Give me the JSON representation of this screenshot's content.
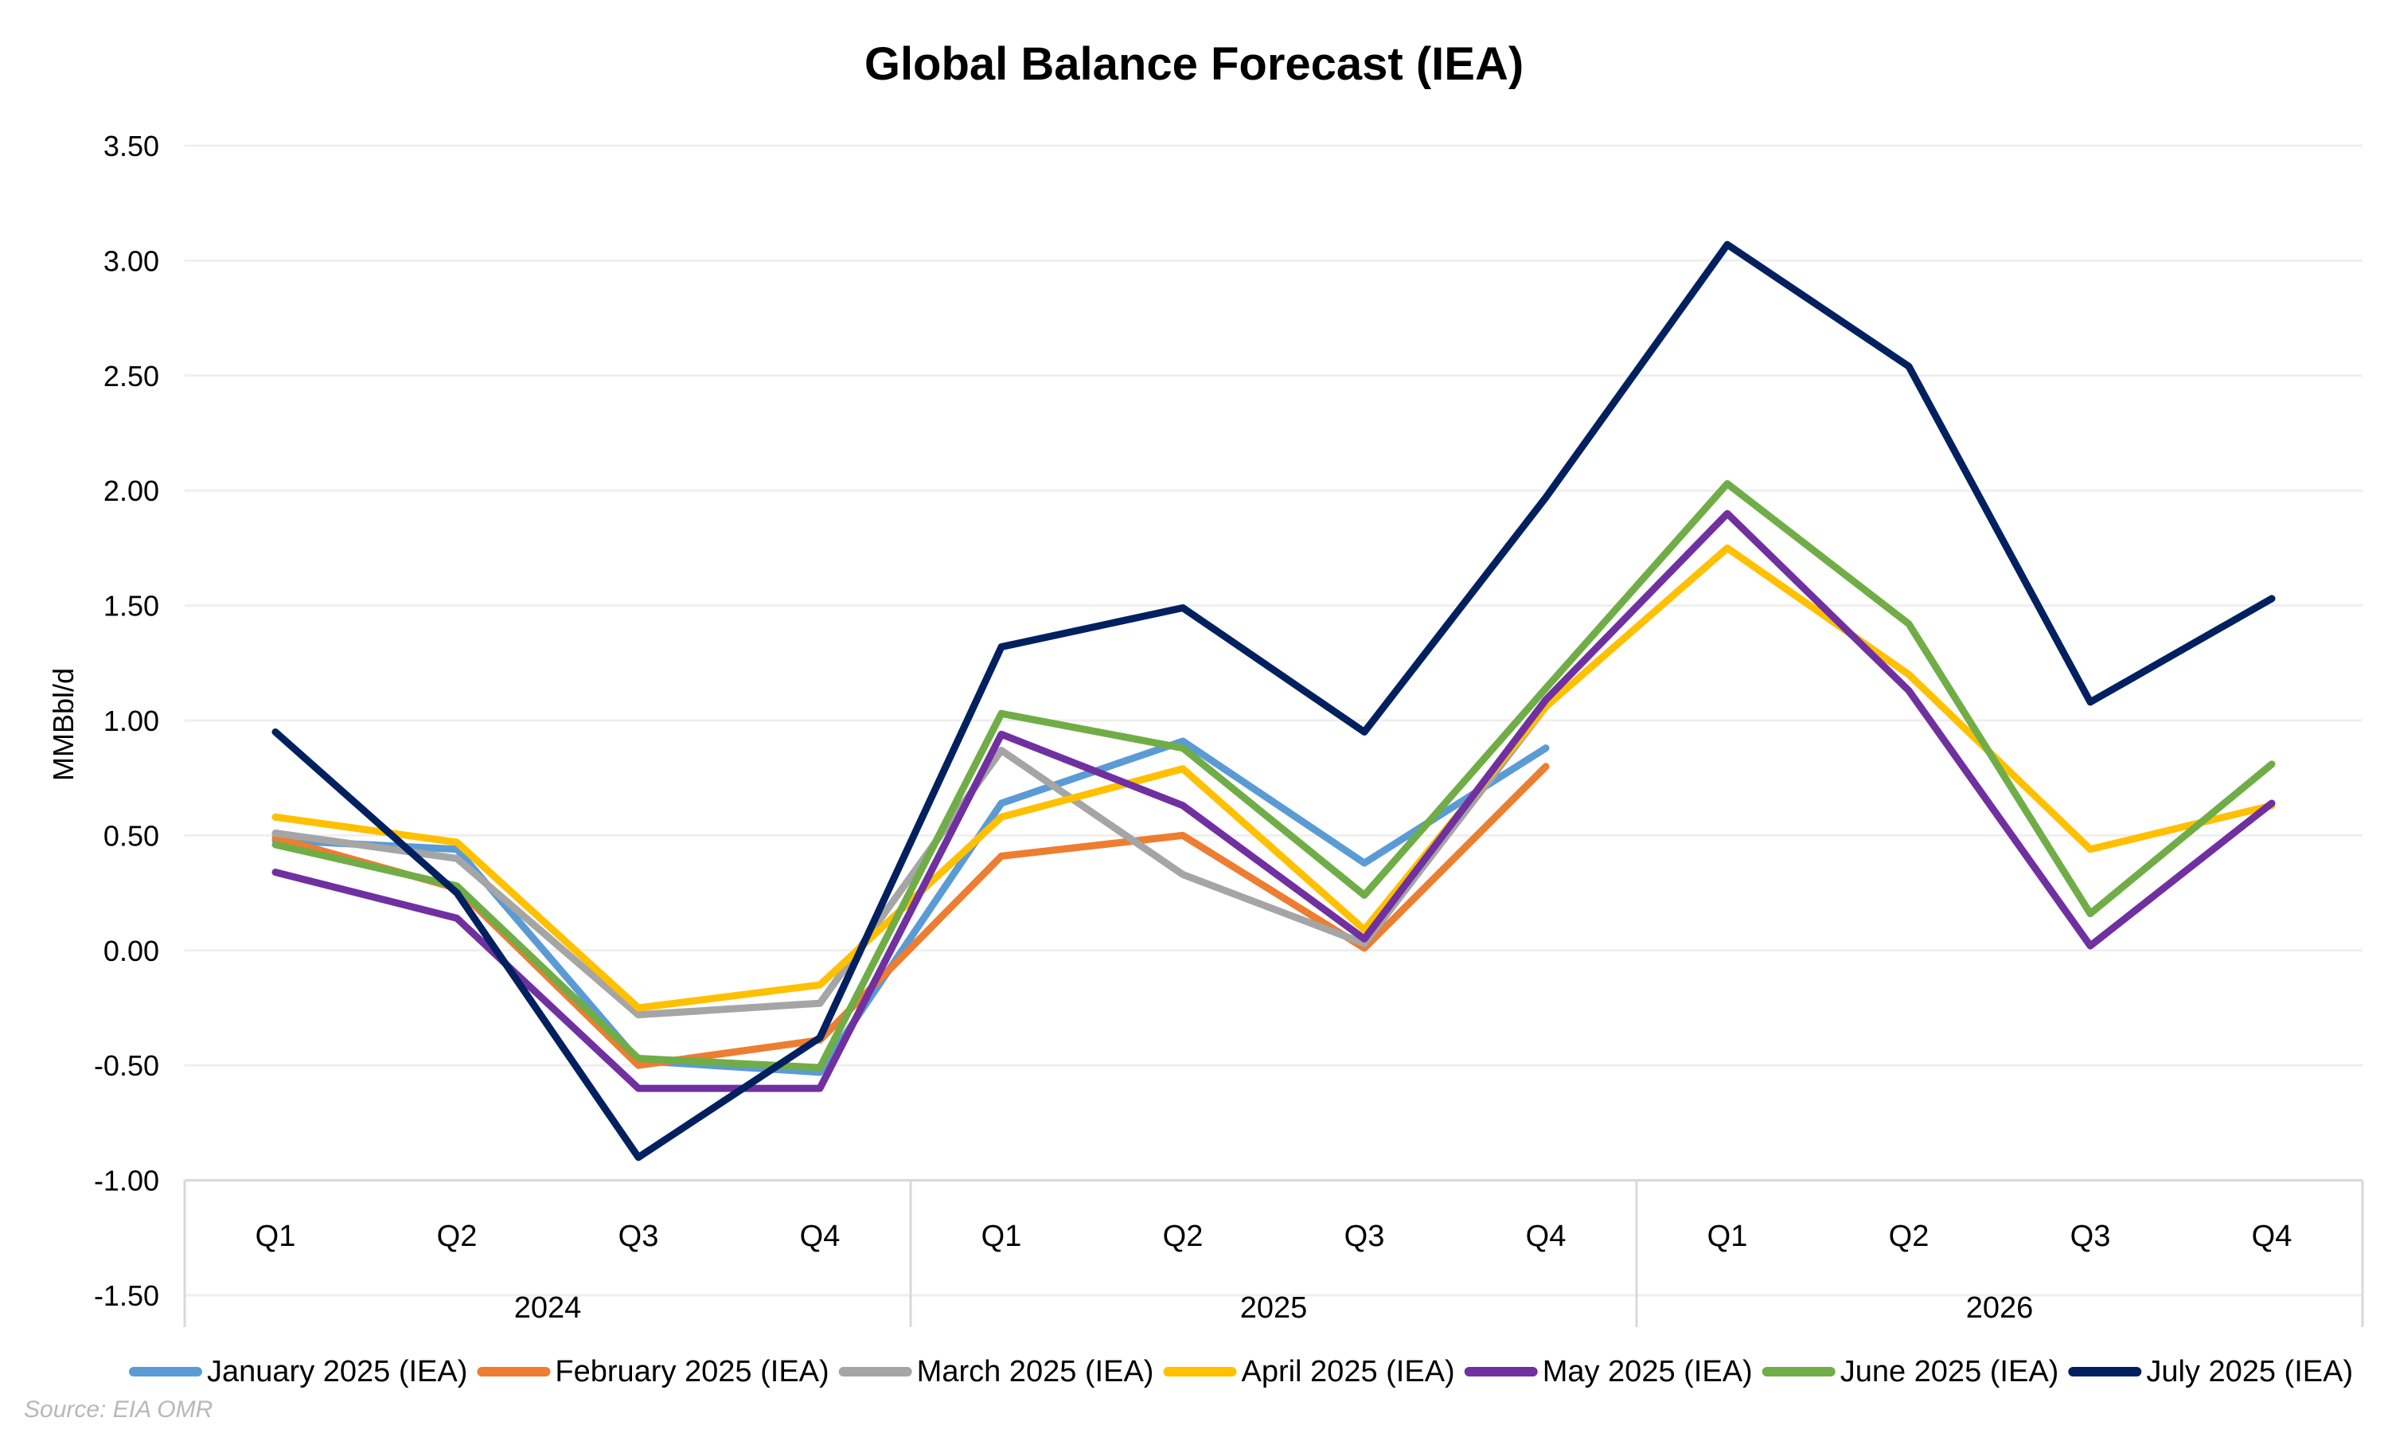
{
  "chart_data": {
    "type": "line",
    "title": "Global Balance Forecast (IEA)",
    "xlabel": "",
    "ylabel": "MMBbl/d",
    "ylim": [
      -1.5,
      3.5
    ],
    "y_ticks": [
      "3.50",
      "3.00",
      "2.50",
      "2.00",
      "1.50",
      "1.00",
      "0.50",
      "0.00",
      "-0.50",
      "-1.00",
      "-1.50"
    ],
    "y_tick_values": [
      3.5,
      3.0,
      2.5,
      2.0,
      1.5,
      1.0,
      0.5,
      0.0,
      -0.5,
      -1.0,
      -1.5
    ],
    "grid": true,
    "legend_position": "bottom",
    "categories": [
      "Q1",
      "Q2",
      "Q3",
      "Q4",
      "Q1",
      "Q2",
      "Q3",
      "Q4",
      "Q1",
      "Q2",
      "Q3",
      "Q4"
    ],
    "groups": [
      {
        "label": "2024",
        "span": 4
      },
      {
        "label": "2025",
        "span": 4
      },
      {
        "label": "2026",
        "span": 4
      }
    ],
    "series": [
      {
        "name": "January 2025 (IEA)",
        "color": "#5B9BD5",
        "values": [
          0.48,
          0.44,
          -0.48,
          -0.53,
          0.64,
          0.91,
          0.38,
          0.88,
          null,
          null,
          null,
          null
        ]
      },
      {
        "name": "February 2025 (IEA)",
        "color": "#ED7D31",
        "values": [
          0.49,
          0.27,
          -0.5,
          -0.39,
          0.41,
          0.5,
          0.01,
          0.8,
          null,
          null,
          null,
          null
        ]
      },
      {
        "name": "March 2025 (IEA)",
        "color": "#A5A5A5",
        "values": [
          0.51,
          0.4,
          -0.28,
          -0.23,
          0.87,
          0.33,
          0.03,
          1.06,
          null,
          null,
          null,
          null
        ]
      },
      {
        "name": "April 2025 (IEA)",
        "color": "#FFC000",
        "values": [
          0.58,
          0.47,
          -0.25,
          -0.15,
          0.58,
          0.79,
          0.09,
          1.06,
          1.75,
          1.2,
          0.44,
          0.63
        ]
      },
      {
        "name": "May 2025 (IEA)",
        "color": "#7030A0",
        "values": [
          0.34,
          0.14,
          -0.6,
          -0.6,
          0.94,
          0.63,
          0.05,
          1.09,
          1.9,
          1.13,
          0.02,
          0.64
        ]
      },
      {
        "name": "June 2025 (IEA)",
        "color": "#70AD47",
        "values": [
          0.46,
          0.28,
          -0.47,
          -0.51,
          1.03,
          0.88,
          0.24,
          1.14,
          2.03,
          1.42,
          0.16,
          0.81
        ]
      },
      {
        "name": "July 2025 (IEA)",
        "color": "#002060",
        "values": [
          0.95,
          0.25,
          -0.9,
          -0.38,
          1.32,
          1.49,
          0.95,
          1.97,
          3.07,
          2.54,
          1.08,
          1.53
        ]
      }
    ],
    "source": "Source: EIA OMR"
  }
}
